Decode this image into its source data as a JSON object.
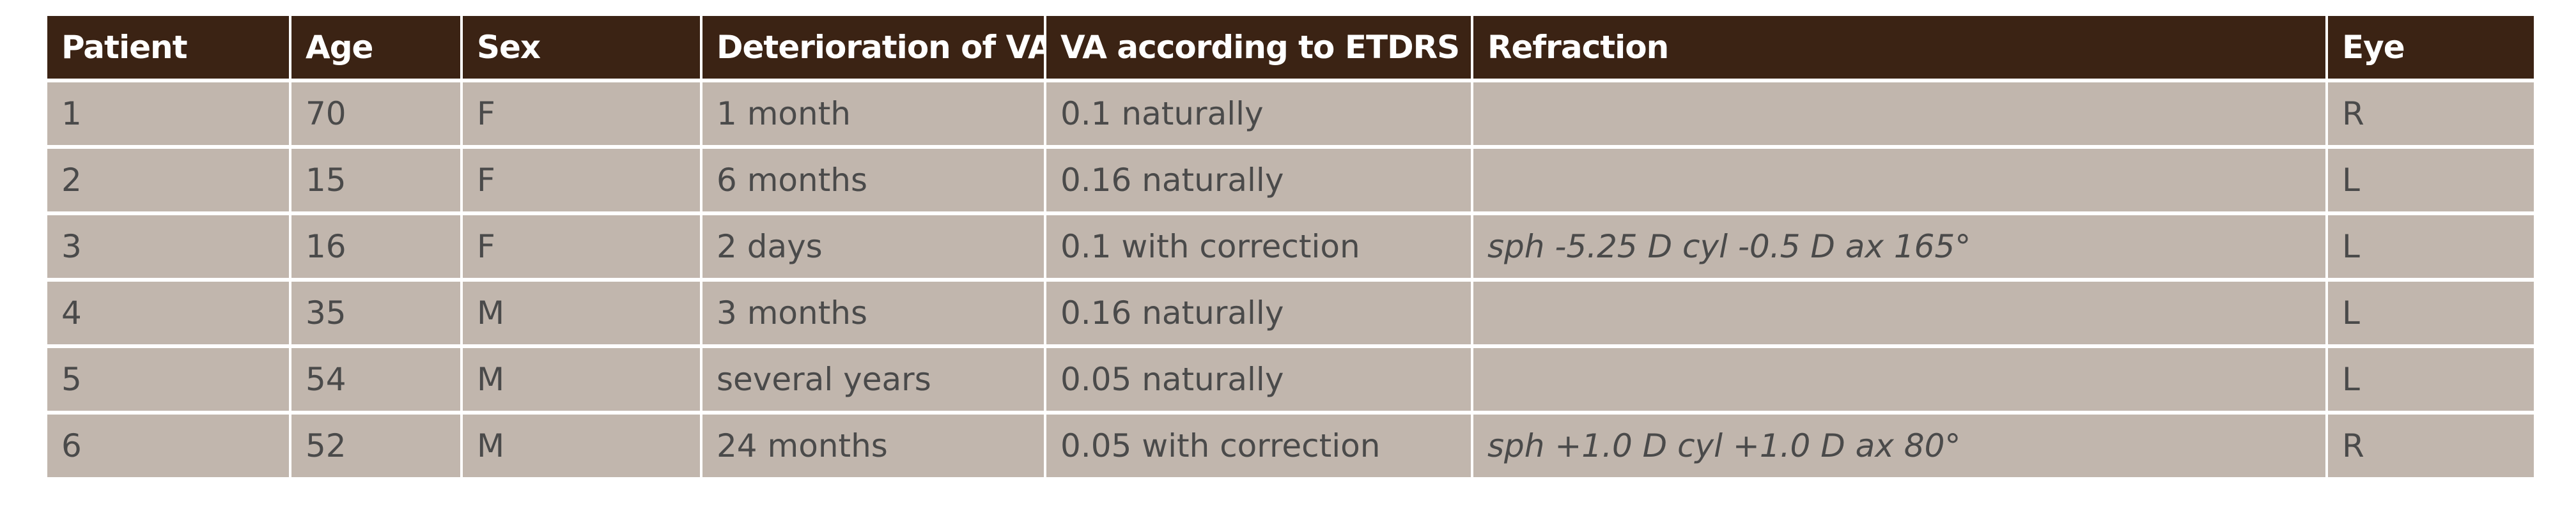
{
  "table": {
    "headers": [
      "Patient",
      "Age",
      "Sex",
      "Deterioration of VA",
      "VA according to ETDRS",
      "Refraction",
      "Eye"
    ],
    "rows": [
      [
        "1",
        "70",
        "F",
        "1 month",
        "0.1 naturally",
        "",
        "R"
      ],
      [
        "2",
        "15",
        "F",
        "6 months",
        "0.16 naturally",
        "",
        "L"
      ],
      [
        "3",
        "16",
        "F",
        "2 days",
        "0.1 with correction",
        "sph -5.25 D cyl -0.5 D ax 165°",
        "L"
      ],
      [
        "4",
        "35",
        "M",
        "3 months",
        "0.16 naturally",
        "",
        "L"
      ],
      [
        "5",
        "54",
        "M",
        "several years",
        "0.05 naturally",
        "",
        "L"
      ],
      [
        "6",
        "52",
        "M",
        "24 months",
        "0.05 with correction",
        "sph +1.0 D cyl +1.0 D ax 80°",
        "R"
      ]
    ]
  },
  "colors": {
    "header_bg": "#3b2314",
    "header_text": "#ffffff",
    "cell_bg": "#c1b6ad",
    "cell_text": "#4a4a4a",
    "grid": "#ffffff"
  }
}
